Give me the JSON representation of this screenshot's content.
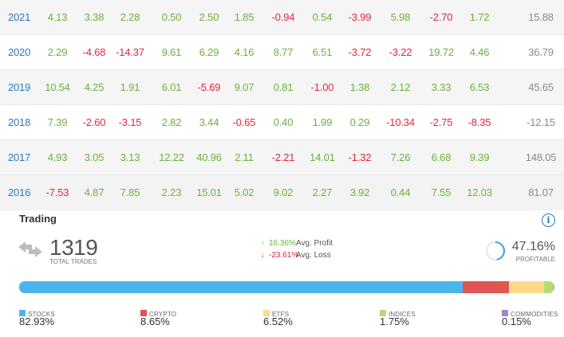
{
  "returns_table": {
    "rows": [
      {
        "year": "2021",
        "values": [
          "4.13",
          "3.38",
          "2.28",
          "0.50",
          "2.50",
          "1.85",
          "-0.94",
          "0.54",
          "-3.99",
          "5.98",
          "-2.70",
          "1.72"
        ],
        "total": "15.88"
      },
      {
        "year": "2020",
        "values": [
          "2.29",
          "-4.68",
          "-14.37",
          "9.61",
          "6.29",
          "4.16",
          "8.77",
          "6.51",
          "-3.72",
          "-3.22",
          "19.72",
          "4.46"
        ],
        "total": "36.79"
      },
      {
        "year": "2019",
        "values": [
          "10.54",
          "4.25",
          "1.91",
          "6.01",
          "-5.69",
          "9.07",
          "0.81",
          "-1.00",
          "1.38",
          "2.12",
          "3.33",
          "6.53"
        ],
        "total": "45.65"
      },
      {
        "year": "2018",
        "values": [
          "7.39",
          "-2.60",
          "-3.15",
          "2.82",
          "3.44",
          "-0.65",
          "0.40",
          "1.99",
          "0.29",
          "-10.34",
          "-2.75",
          "-8.35"
        ],
        "total": "-12.15"
      },
      {
        "year": "2017",
        "values": [
          "4.93",
          "3.05",
          "3.13",
          "12.22",
          "40.96",
          "2.11",
          "-2.21",
          "14.01",
          "-1.32",
          "7.26",
          "6.68",
          "9.39"
        ],
        "total": "148.05"
      },
      {
        "year": "2016",
        "values": [
          "-7.53",
          "4.87",
          "7.85",
          "2.23",
          "15.01",
          "5.02",
          "9.02",
          "2.27",
          "3.92",
          "0.44",
          "7.55",
          "12.03"
        ],
        "total": "81.07"
      }
    ]
  },
  "trading": {
    "title": "Trading",
    "info_icon": "info-icon",
    "total_trades": "1319",
    "total_trades_label": "TOTAL TRADES",
    "avg_profit_value": "16.36%",
    "avg_profit_label": "Avg. Profit",
    "avg_loss_value": "-23.61%",
    "avg_loss_label": "Avg. Loss",
    "profitable_value": "47.16%",
    "profitable_fraction": 0.4716,
    "profitable_label": "PROFITABLE",
    "colors": {
      "profit": "#6ab23a",
      "loss": "#e2283e",
      "year": "#2b79c2",
      "total": "#8a8a8a",
      "donut": "#3aa0e8"
    }
  },
  "allocation": [
    {
      "name": "STOCKS",
      "value": "82.93%",
      "fraction": 0.8293,
      "color": "#4cb4ec"
    },
    {
      "name": "CRYPTO",
      "value": "8.65%",
      "fraction": 0.0865,
      "color": "#e05552"
    },
    {
      "name": "ETFS",
      "value": "6.52%",
      "fraction": 0.0652,
      "color": "#fcdc8c"
    },
    {
      "name": "INDICES",
      "value": "1.75%",
      "fraction": 0.0175,
      "color": "#b4dc74"
    },
    {
      "name": "COMMODITIES",
      "value": "0.15%",
      "fraction": 0.0015,
      "color": "#a383d4"
    }
  ]
}
